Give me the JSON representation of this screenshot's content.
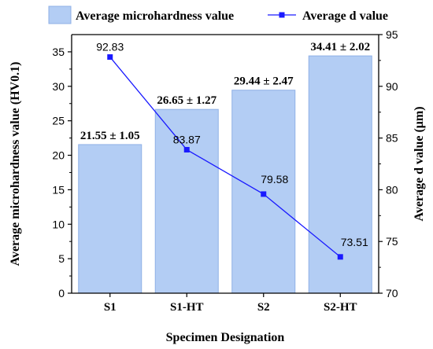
{
  "chart_data": {
    "type": "bar",
    "categories": [
      "S1",
      "S1-HT",
      "S2",
      "S2-HT"
    ],
    "xlabel": "Specimen Designation",
    "ylabel": "Average microhardness value (HV0.1)",
    "y2label": "Average d value (μm)",
    "ylim": [
      0,
      37.5
    ],
    "y2lim": [
      70,
      95
    ],
    "yticks": [
      0,
      5,
      10,
      15,
      20,
      25,
      30,
      35
    ],
    "y2ticks": [
      70,
      75,
      80,
      85,
      90,
      95
    ],
    "legend_position": "top",
    "grid": false,
    "series": [
      {
        "name": "Average microhardness value",
        "kind": "bar",
        "axis": "left",
        "values": [
          21.55,
          26.65,
          29.44,
          34.41
        ],
        "labels": [
          "21.55 ± 1.05",
          "26.65 ± 1.27",
          "29.44 ± 2.47",
          "34.41 ± 2.02"
        ],
        "fill": "#b3cdf4",
        "stroke": "#8fb0e6"
      },
      {
        "name": "Average d value",
        "kind": "line",
        "axis": "right",
        "values": [
          92.83,
          83.87,
          79.58,
          73.51
        ],
        "labels": [
          "92.83",
          "83.87",
          "79.58",
          "73.51"
        ],
        "color": "#1a1aff"
      }
    ]
  }
}
